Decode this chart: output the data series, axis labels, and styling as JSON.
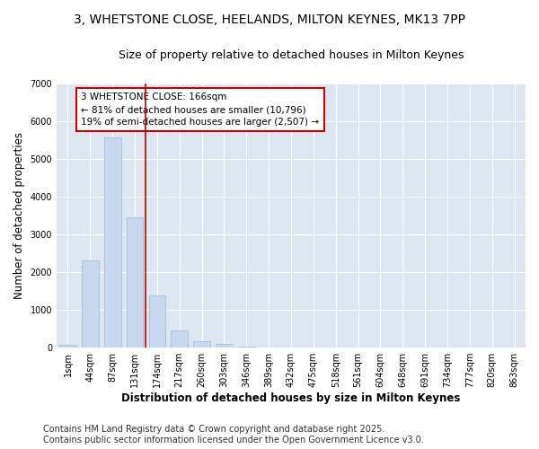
{
  "title_line1": "3, WHETSTONE CLOSE, HEELANDS, MILTON KEYNES, MK13 7PP",
  "title_line2": "Size of property relative to detached houses in Milton Keynes",
  "xlabel": "Distribution of detached houses by size in Milton Keynes",
  "ylabel": "Number of detached properties",
  "categories": [
    "1sqm",
    "44sqm",
    "87sqm",
    "131sqm",
    "174sqm",
    "217sqm",
    "260sqm",
    "303sqm",
    "346sqm",
    "389sqm",
    "432sqm",
    "475sqm",
    "518sqm",
    "561sqm",
    "604sqm",
    "648sqm",
    "691sqm",
    "734sqm",
    "777sqm",
    "820sqm",
    "863sqm"
  ],
  "values": [
    75,
    2300,
    5560,
    3450,
    1380,
    460,
    170,
    100,
    30,
    10,
    5,
    0,
    0,
    0,
    0,
    0,
    0,
    0,
    0,
    0,
    0
  ],
  "bar_color": "#c8d8ee",
  "bar_edge_color": "#a0b8d8",
  "vline_x_index": 3.5,
  "vline_color": "#cc0000",
  "annotation_text": "3 WHETSTONE CLOSE: 166sqm\n← 81% of detached houses are smaller (10,796)\n19% of semi-detached houses are larger (2,507) →",
  "annotation_box_color": "#ffffff",
  "annotation_box_edge": "#cc0000",
  "ylim": [
    0,
    7000
  ],
  "yticks": [
    0,
    1000,
    2000,
    3000,
    4000,
    5000,
    6000,
    7000
  ],
  "fig_background_color": "#ffffff",
  "plot_bg_color": "#dce6f1",
  "footer_line1": "Contains HM Land Registry data © Crown copyright and database right 2025.",
  "footer_line2": "Contains public sector information licensed under the Open Government Licence v3.0.",
  "grid_color": "#ffffff",
  "title_fontsize": 10,
  "subtitle_fontsize": 9,
  "axis_label_fontsize": 8.5,
  "tick_fontsize": 7,
  "footer_fontsize": 7,
  "bar_width": 0.75
}
